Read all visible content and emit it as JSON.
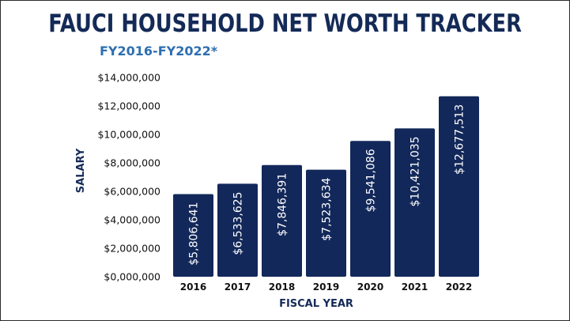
{
  "colors": {
    "title": "#142a57",
    "subtitle": "#2e6fb0",
    "bar": "#13285a",
    "bar_label": "#ffffff"
  },
  "chart_data": {
    "type": "bar",
    "title": "FAUCI HOUSEHOLD NET WORTH TRACKER",
    "subtitle": "FY2016-FY2022*",
    "xlabel": "FISCAL YEAR",
    "ylabel": "SALARY",
    "categories": [
      "2016",
      "2017",
      "2018",
      "2019",
      "2020",
      "2021",
      "2022"
    ],
    "values": [
      5806641,
      6533625,
      7846391,
      7523634,
      9541086,
      10421035,
      12677513
    ],
    "data_labels": [
      "$5,806,641",
      "$6,533,625",
      "$7,846,391",
      "$7,523,634",
      "$9,541,086",
      "$10,421,035",
      "$12,677,513"
    ],
    "ylim": [
      0,
      14000000
    ],
    "yticks": [
      0,
      2000000,
      4000000,
      6000000,
      8000000,
      10000000,
      12000000,
      14000000
    ],
    "ytick_labels": [
      "$0,000,000",
      "$2,000,000",
      "$4,000,000",
      "$6,000,000",
      "$8,000,000",
      "$10,000,000",
      "$12,000,000",
      "$14,000,000"
    ],
    "grid": false,
    "legend": "none"
  }
}
